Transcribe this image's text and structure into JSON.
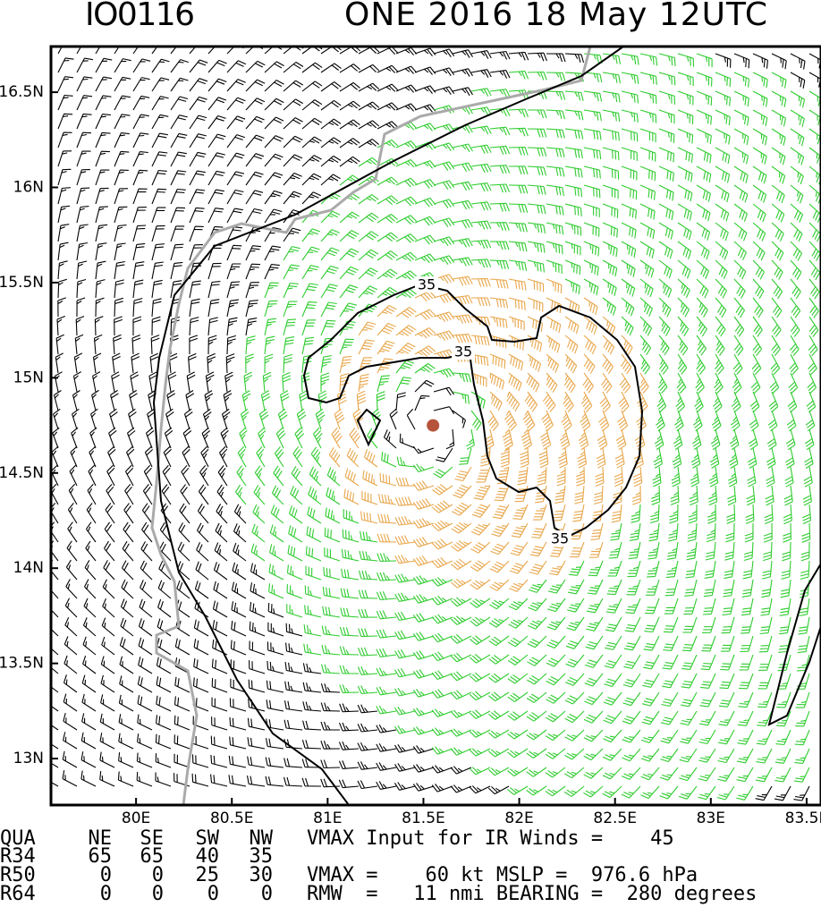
{
  "title_left": "IO0116",
  "title_right": "ONE 2016 18 May 12UTC",
  "map": {
    "xlim": [
      79.556,
      83.575
    ],
    "ylim": [
      12.756,
      16.74
    ],
    "xticks": [
      {
        "value": 80,
        "label": "80E"
      },
      {
        "value": 80.5,
        "label": "80.5E"
      },
      {
        "value": 81,
        "label": "81E"
      },
      {
        "value": 81.5,
        "label": "81.5E"
      },
      {
        "value": 82,
        "label": "82E"
      },
      {
        "value": 82.5,
        "label": "82.5E"
      },
      {
        "value": 83,
        "label": "83E"
      },
      {
        "value": 83.5,
        "label": "83.5E"
      }
    ],
    "yticks": [
      {
        "value": 13,
        "label": "13N"
      },
      {
        "value": 13.5,
        "label": "13.5N"
      },
      {
        "value": 14,
        "label": "14N"
      },
      {
        "value": 14.5,
        "label": "14.5N"
      },
      {
        "value": 15,
        "label": "15N"
      },
      {
        "value": 15.5,
        "label": "15.5N"
      },
      {
        "value": 16,
        "label": "16N"
      },
      {
        "value": 16.5,
        "label": "16.5N"
      }
    ],
    "center": {
      "lon": 81.55,
      "lat": 14.75
    },
    "contour_labels": [
      "35",
      "35",
      "35"
    ]
  },
  "table": {
    "header": [
      "QUA",
      "NE",
      "SE",
      "SW",
      "NW"
    ],
    "rows": [
      [
        "R34",
        65,
        65,
        40,
        35
      ],
      [
        "R50",
        0,
        0,
        25,
        30
      ],
      [
        "R64",
        0,
        0,
        0,
        0
      ]
    ]
  },
  "info": [
    "VMAX Input for IR Winds =    45",
    "VMAX =    60 kt MSLP =  976.6 hPa",
    "RMW  =   11 nmi BEARING =  280 degrees"
  ]
}
